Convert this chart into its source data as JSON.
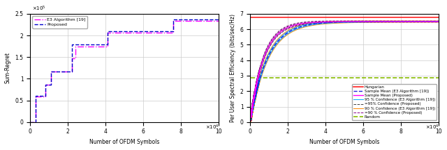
{
  "fig_width": 6.4,
  "fig_height": 2.16,
  "dpi": 100,
  "left_xlabel": "Number of OFDM Symbols",
  "left_ylabel": "Sum-Regret",
  "left_xlim": [
    0,
    100000
  ],
  "left_ylim": [
    0,
    250000
  ],
  "left_xticks": [
    0,
    20000,
    40000,
    60000,
    80000,
    100000
  ],
  "left_xtick_labels": [
    "0",
    "2",
    "4",
    "6",
    "8",
    "10"
  ],
  "left_yticks": [
    0,
    50000,
    100000,
    150000,
    200000,
    250000
  ],
  "left_ytick_labels": [
    "0",
    "0.5",
    "1",
    "1.5",
    "2",
    "2.5"
  ],
  "right_xlabel": "Number of OFDM Symbols",
  "right_ylabel": "Per User Spectral Efficiency (bits/sec/Hz)",
  "right_xlim": [
    0,
    100000
  ],
  "right_ylim": [
    0,
    7
  ],
  "right_xticks": [
    0,
    20000,
    40000,
    60000,
    80000,
    100000
  ],
  "right_xtick_labels": [
    "0",
    "2",
    "4",
    "6",
    "8",
    "10"
  ],
  "right_yticks": [
    0,
    1,
    2,
    3,
    4,
    5,
    6,
    7
  ],
  "proposed_color": "#0000CD",
  "e3_color": "#FF00FF",
  "hungarian_color": "#FF2020",
  "sample_mean_e3_color": "#2020DD",
  "sample_mean_proposed_color": "#FF00FF",
  "conf95_e3_color": "#00AAFF",
  "conf95_proposed_color": "#404040",
  "conf90_e3_color": "#FF8800",
  "conf90_proposed_color": "#880088",
  "random_color": "#88BB00",
  "hungarian_value": 6.78,
  "random_value": 2.88,
  "left_step_x_proposed": [
    0,
    3000,
    3000,
    8000,
    8000,
    11000,
    11000,
    22000,
    22000,
    24000,
    24000,
    41000,
    41000,
    76000,
    76000,
    100000
  ],
  "left_step_y_proposed": [
    0,
    0,
    60000,
    60000,
    87000,
    87000,
    117000,
    117000,
    180000,
    180000,
    180000,
    180000,
    209000,
    209000,
    237000,
    237000
  ],
  "left_step_x_e3": [
    0,
    3000,
    3000,
    8000,
    8000,
    11000,
    11000,
    22000,
    22000,
    24000,
    24000,
    41000,
    41000,
    76000,
    76000,
    100000
  ],
  "left_step_y_e3": [
    0,
    0,
    59000,
    59000,
    86000,
    86000,
    116000,
    116000,
    148000,
    148000,
    175000,
    175000,
    206000,
    206000,
    234000,
    234000
  ],
  "background_color": "#FFFFFF",
  "grid_color": "#CCCCCC"
}
